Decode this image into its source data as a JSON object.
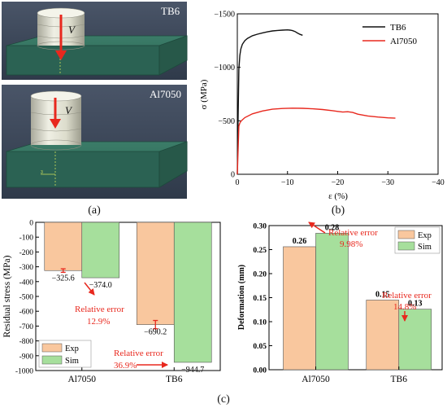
{
  "colors": {
    "tb6_line": "#111111",
    "al7050_line": "#e8281e",
    "exp_bar": "#f9c79e",
    "sim_bar": "#a6df9c",
    "annotation": "#e8281e",
    "model_green": "#2e6a58",
    "background_dark": "#3f4c5e"
  },
  "panel_a": {
    "label": "(a)",
    "top_image": {
      "label": "TB6",
      "velocity": "V",
      "icon": "down-arrow-icon"
    },
    "bottom_image": {
      "label": "Al7050",
      "velocity": "V",
      "icon": "down-arrow-icon"
    }
  },
  "panel_b": {
    "label": "(b)"
  },
  "panel_c": {
    "label": "(c)"
  },
  "chart_data": [
    {
      "id": "stress_strain",
      "type": "line",
      "xlabel": "ε (%)",
      "ylabel": "σ (MPa)",
      "xlim": [
        0,
        -40
      ],
      "ylim": [
        0,
        -1500
      ],
      "xticks": [
        "0",
        "−10",
        "−20",
        "−30",
        "−40"
      ],
      "yticks": [
        "0",
        "−500",
        "−1000",
        "−1500"
      ],
      "legend_position": "top-right",
      "series": [
        {
          "name": "TB6",
          "x": [
            0,
            -0.15,
            -0.3,
            -0.5,
            -0.7,
            -1,
            -1.5,
            -2,
            -3,
            -4,
            -5,
            -6,
            -7,
            -8,
            -9,
            -10,
            -10.5,
            -11,
            -11.5,
            -12,
            -12.5,
            -13
          ],
          "y": [
            0,
            -500,
            -980,
            -1110,
            -1170,
            -1215,
            -1250,
            -1270,
            -1295,
            -1310,
            -1322,
            -1332,
            -1340,
            -1345,
            -1348,
            -1350,
            -1348,
            -1343,
            -1335,
            -1320,
            -1308,
            -1300
          ]
        },
        {
          "name": "Al7050",
          "x": [
            0,
            -0.3,
            -0.5,
            -0.8,
            -1.5,
            -3,
            -5,
            -7,
            -9,
            -11,
            -13,
            -15,
            -17,
            -19,
            -20,
            -21,
            -22,
            -23,
            -24,
            -26,
            -28,
            -30,
            -31.5
          ],
          "y": [
            0,
            -450,
            -480,
            -500,
            -530,
            -565,
            -592,
            -608,
            -615,
            -618,
            -617,
            -612,
            -605,
            -595,
            -588,
            -582,
            -585,
            -578,
            -562,
            -545,
            -535,
            -528,
            -525
          ]
        }
      ]
    },
    {
      "id": "residual_stress",
      "type": "bar",
      "ylabel": "Residual stress (MPa)",
      "categories": [
        "Al7050",
        "TB6"
      ],
      "ylim": [
        0,
        -1000
      ],
      "yticks": [
        "0",
        "-100",
        "-200",
        "-300",
        "-400",
        "-500",
        "-600",
        "-700",
        "-800",
        "-900",
        "-1000"
      ],
      "legend_position": "bottom-left",
      "series": [
        {
          "name": "Exp",
          "values": [
            -325.6,
            -690.2
          ],
          "labels": [
            "−325.6",
            "−690.2"
          ],
          "error": [
            12,
            28
          ]
        },
        {
          "name": "Sim",
          "values": [
            -374.0,
            -944.7
          ],
          "labels": [
            "−374.0",
            "−944.7"
          ]
        }
      ],
      "annotations": [
        {
          "line1": "Relative error",
          "line2": "12.9%"
        },
        {
          "line1": "Relative error",
          "line2": "36.9%"
        }
      ]
    },
    {
      "id": "deformation",
      "type": "bar",
      "ylabel": "Deformation (mm)",
      "categories": [
        "Al7050",
        "TB6"
      ],
      "ylim": [
        0,
        0.3
      ],
      "yticks": [
        "0.00",
        "0.05",
        "0.10",
        "0.15",
        "0.20",
        "0.25",
        "0.30"
      ],
      "legend_position": "top-right",
      "series": [
        {
          "name": "Exp",
          "values": [
            0.256,
            0.145
          ],
          "labels": [
            "0.26",
            "0.15"
          ]
        },
        {
          "name": "Sim",
          "values": [
            0.284,
            0.126
          ],
          "labels": [
            "0.28",
            "0.13"
          ]
        }
      ],
      "annotations": [
        {
          "line1": "Relative error",
          "line2": "9.98%"
        },
        {
          "line1": "Relative error",
          "line2": "14.8%"
        }
      ]
    }
  ]
}
